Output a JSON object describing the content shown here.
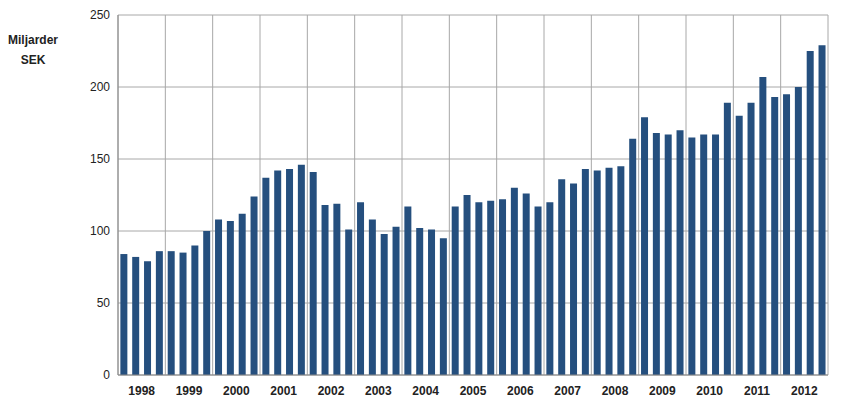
{
  "chart_data": {
    "type": "bar",
    "ylabel": "Miljarder SEK",
    "categories": [
      null,
      "1998",
      null,
      null,
      null,
      "1999",
      null,
      null,
      null,
      "2000",
      null,
      null,
      null,
      "2001",
      null,
      null,
      null,
      "2002",
      null,
      null,
      null,
      "2003",
      null,
      null,
      null,
      "2004",
      null,
      null,
      null,
      "2005",
      null,
      null,
      null,
      "2006",
      null,
      null,
      null,
      "2007",
      null,
      null,
      null,
      "2008",
      null,
      null,
      null,
      "2009",
      null,
      null,
      null,
      "2010",
      null,
      null,
      null,
      "2011",
      null,
      null,
      null,
      "2012",
      null,
      null
    ],
    "values": [
      84,
      82,
      79,
      86,
      86,
      85,
      90,
      100,
      108,
      107,
      112,
      124,
      137,
      142,
      143,
      146,
      141,
      118,
      119,
      101,
      120,
      108,
      98,
      103,
      117,
      102,
      101,
      95,
      117,
      125,
      120,
      121,
      122,
      130,
      126,
      117,
      120,
      136,
      133,
      143,
      142,
      144,
      145,
      164,
      179,
      168,
      167,
      170,
      165,
      167,
      167,
      189,
      180,
      189,
      207,
      193,
      195,
      200,
      225,
      229
    ],
    "color": "#254f7e",
    "ylim": [
      0,
      250
    ],
    "yticks": [
      0,
      50,
      100,
      150,
      200,
      250
    ],
    "grid": true
  }
}
